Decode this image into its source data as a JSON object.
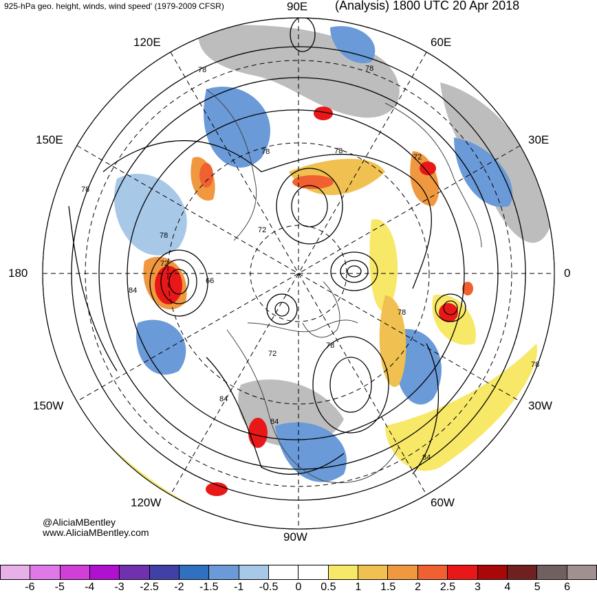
{
  "header": {
    "left": "925-hPa geo. height, winds, wind speed' (1979-2009 CFSR)",
    "right": "(Analysis) 1800 UTC 20 Apr 2018"
  },
  "longitudes": {
    "e90": "90E",
    "e60": "60E",
    "e30": "30E",
    "e0": "0",
    "w30": "30W",
    "w60": "60W",
    "w90": "90W",
    "w120": "120W",
    "w150": "150W",
    "e180": "180",
    "e150": "150E",
    "e120": "120E"
  },
  "contour_labels": [
    "78",
    "78",
    "78",
    "78",
    "72",
    "78",
    "78",
    "72",
    "84",
    "66",
    "72",
    "72",
    "78",
    "78",
    "84",
    "84",
    "84",
    "78"
  ],
  "credits": {
    "handle": "@AliciaMBentley",
    "site": "www.AliciaMBentley.com"
  },
  "colorbar": {
    "colors": [
      "#e8b0e8",
      "#e078e8",
      "#d040d8",
      "#b010d0",
      "#7030b0",
      "#4040a8",
      "#3070c0",
      "#6a9ad8",
      "#a8c8e8",
      "#ffffff",
      "#ffffff",
      "#f8e868",
      "#f0c050",
      "#f09840",
      "#f06030",
      "#e81818",
      "#a80808",
      "#702020",
      "#706060",
      "#a09090"
    ],
    "ticks": [
      "-6",
      "-5",
      "-4",
      "-3",
      "-2.5",
      "-2",
      "-1.5",
      "-1",
      "-0.5",
      "0",
      "0.5",
      "1",
      "1.5",
      "2",
      "2.5",
      "3",
      "4",
      "5",
      "6"
    ]
  },
  "shading": {
    "blue": "#5d8fd6",
    "lightblue": "#a8c8e8",
    "yellow": "#f8e868",
    "orange": "#f0c050",
    "red": "#e81818",
    "gray": "#bdbdbd"
  }
}
